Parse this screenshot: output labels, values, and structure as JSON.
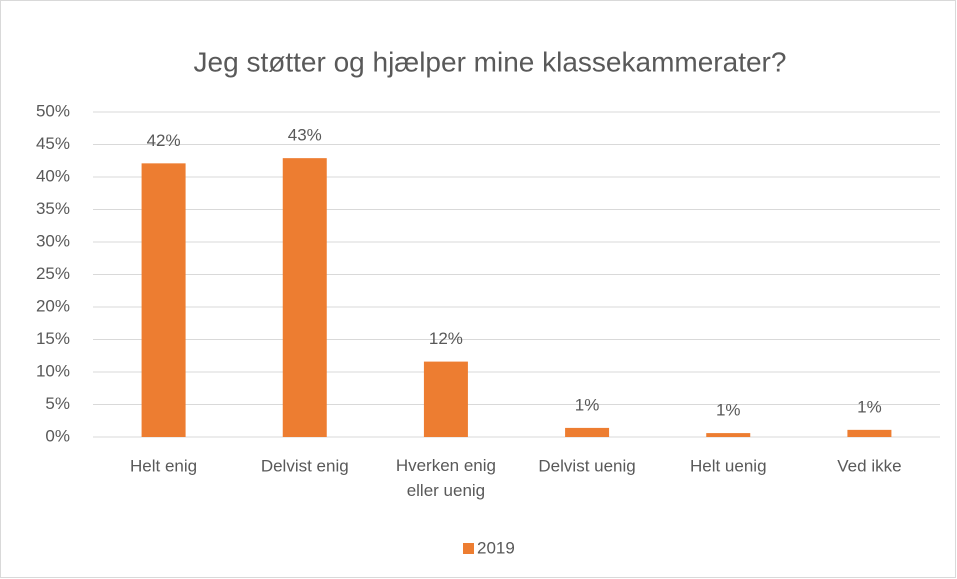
{
  "chart_data": {
    "type": "bar",
    "title": "Jeg støtter og hjælper mine klassekammerater?",
    "categories": [
      "Helt enig",
      "Delvist enig",
      "Hverken enig eller uenig",
      "Delvist uenig",
      "Helt uenig",
      "Ved ikke"
    ],
    "series": [
      {
        "name": "2019",
        "color": "#ed7d31",
        "values": [
          42.1,
          42.9,
          11.6,
          1.4,
          0.6,
          1.1
        ],
        "value_labels": [
          "42%",
          "43%",
          "12%",
          "1%",
          "1%",
          "1%"
        ]
      }
    ],
    "ylim": [
      0,
      50
    ],
    "yticks": [
      {
        "value": 0,
        "label": "0%"
      },
      {
        "value": 5,
        "label": "5%"
      },
      {
        "value": 10,
        "label": "10%"
      },
      {
        "value": 15,
        "label": "15%"
      },
      {
        "value": 20,
        "label": "20%"
      },
      {
        "value": 25,
        "label": "25%"
      },
      {
        "value": 30,
        "label": "30%"
      },
      {
        "value": 35,
        "label": "35%"
      },
      {
        "value": 40,
        "label": "40%"
      },
      {
        "value": 45,
        "label": "45%"
      },
      {
        "value": 50,
        "label": "50%"
      }
    ],
    "grid": true,
    "legend": "bottom"
  }
}
